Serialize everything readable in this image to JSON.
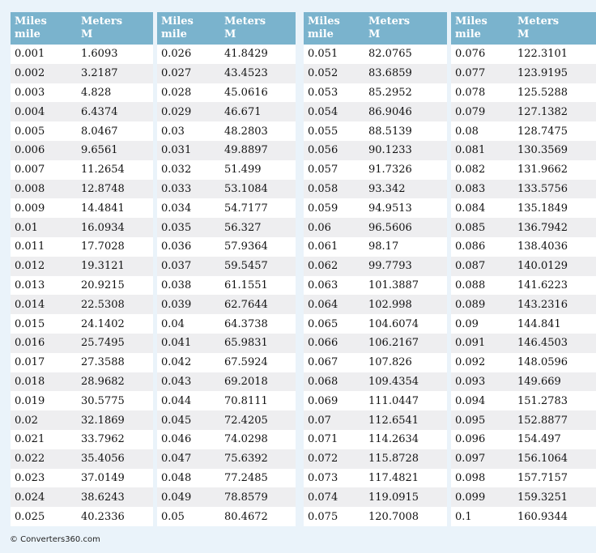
{
  "header": {
    "col1": "Miles\nmile",
    "col2": "Meters\nM"
  },
  "tables": [
    {
      "rows": [
        [
          "0.001",
          "1.6093"
        ],
        [
          "0.002",
          "3.2187"
        ],
        [
          "0.003",
          "4.828"
        ],
        [
          "0.004",
          "6.4374"
        ],
        [
          "0.005",
          "8.0467"
        ],
        [
          "0.006",
          "9.6561"
        ],
        [
          "0.007",
          "11.2654"
        ],
        [
          "0.008",
          "12.8748"
        ],
        [
          "0.009",
          "14.4841"
        ],
        [
          "0.01",
          "16.0934"
        ],
        [
          "0.011",
          "17.7028"
        ],
        [
          "0.012",
          "19.3121"
        ],
        [
          "0.013",
          "20.9215"
        ],
        [
          "0.014",
          "22.5308"
        ],
        [
          "0.015",
          "24.1402"
        ],
        [
          "0.016",
          "25.7495"
        ],
        [
          "0.017",
          "27.3588"
        ],
        [
          "0.018",
          "28.9682"
        ],
        [
          "0.019",
          "30.5775"
        ],
        [
          "0.02",
          "32.1869"
        ],
        [
          "0.021",
          "33.7962"
        ],
        [
          "0.022",
          "35.4056"
        ],
        [
          "0.023",
          "37.0149"
        ],
        [
          "0.024",
          "38.6243"
        ],
        [
          "0.025",
          "40.2336"
        ]
      ]
    },
    {
      "rows": [
        [
          "0.026",
          "41.8429"
        ],
        [
          "0.027",
          "43.4523"
        ],
        [
          "0.028",
          "45.0616"
        ],
        [
          "0.029",
          "46.671"
        ],
        [
          "0.03",
          "48.2803"
        ],
        [
          "0.031",
          "49.8897"
        ],
        [
          "0.032",
          "51.499"
        ],
        [
          "0.033",
          "53.1084"
        ],
        [
          "0.034",
          "54.7177"
        ],
        [
          "0.035",
          "56.327"
        ],
        [
          "0.036",
          "57.9364"
        ],
        [
          "0.037",
          "59.5457"
        ],
        [
          "0.038",
          "61.1551"
        ],
        [
          "0.039",
          "62.7644"
        ],
        [
          "0.04",
          "64.3738"
        ],
        [
          "0.041",
          "65.9831"
        ],
        [
          "0.042",
          "67.5924"
        ],
        [
          "0.043",
          "69.2018"
        ],
        [
          "0.044",
          "70.8111"
        ],
        [
          "0.045",
          "72.4205"
        ],
        [
          "0.046",
          "74.0298"
        ],
        [
          "0.047",
          "75.6392"
        ],
        [
          "0.048",
          "77.2485"
        ],
        [
          "0.049",
          "78.8579"
        ],
        [
          "0.05",
          "80.4672"
        ]
      ]
    },
    {
      "rows": [
        [
          "0.051",
          "82.0765"
        ],
        [
          "0.052",
          "83.6859"
        ],
        [
          "0.053",
          "85.2952"
        ],
        [
          "0.054",
          "86.9046"
        ],
        [
          "0.055",
          "88.5139"
        ],
        [
          "0.056",
          "90.1233"
        ],
        [
          "0.057",
          "91.7326"
        ],
        [
          "0.058",
          "93.342"
        ],
        [
          "0.059",
          "94.9513"
        ],
        [
          "0.06",
          "96.5606"
        ],
        [
          "0.061",
          "98.17"
        ],
        [
          "0.062",
          "99.7793"
        ],
        [
          "0.063",
          "101.3887"
        ],
        [
          "0.064",
          "102.998"
        ],
        [
          "0.065",
          "104.6074"
        ],
        [
          "0.066",
          "106.2167"
        ],
        [
          "0.067",
          "107.826"
        ],
        [
          "0.068",
          "109.4354"
        ],
        [
          "0.069",
          "111.0447"
        ],
        [
          "0.07",
          "112.6541"
        ],
        [
          "0.071",
          "114.2634"
        ],
        [
          "0.072",
          "115.8728"
        ],
        [
          "0.073",
          "117.4821"
        ],
        [
          "0.074",
          "119.0915"
        ],
        [
          "0.075",
          "120.7008"
        ]
      ]
    },
    {
      "rows": [
        [
          "0.076",
          "122.3101"
        ],
        [
          "0.077",
          "123.9195"
        ],
        [
          "0.078",
          "125.5288"
        ],
        [
          "0.079",
          "127.1382"
        ],
        [
          "0.08",
          "128.7475"
        ],
        [
          "0.081",
          "130.3569"
        ],
        [
          "0.082",
          "131.9662"
        ],
        [
          "0.083",
          "133.5756"
        ],
        [
          "0.084",
          "135.1849"
        ],
        [
          "0.085",
          "136.7942"
        ],
        [
          "0.086",
          "138.4036"
        ],
        [
          "0.087",
          "140.0129"
        ],
        [
          "0.088",
          "141.6223"
        ],
        [
          "0.089",
          "143.2316"
        ],
        [
          "0.09",
          "144.841"
        ],
        [
          "0.091",
          "146.4503"
        ],
        [
          "0.092",
          "148.0596"
        ],
        [
          "0.093",
          "149.669"
        ],
        [
          "0.094",
          "151.2783"
        ],
        [
          "0.095",
          "152.8877"
        ],
        [
          "0.096",
          "154.497"
        ],
        [
          "0.097",
          "156.1064"
        ],
        [
          "0.098",
          "157.7157"
        ],
        [
          "0.099",
          "159.3251"
        ],
        [
          "0.1",
          "160.9344"
        ]
      ]
    }
  ],
  "footer": {
    "copyright": "© Converters360.com"
  },
  "colors": {
    "header_bg": "#7ab3cd",
    "row_alt": "#eeeef0",
    "page_bg": "#eaf3fa"
  }
}
